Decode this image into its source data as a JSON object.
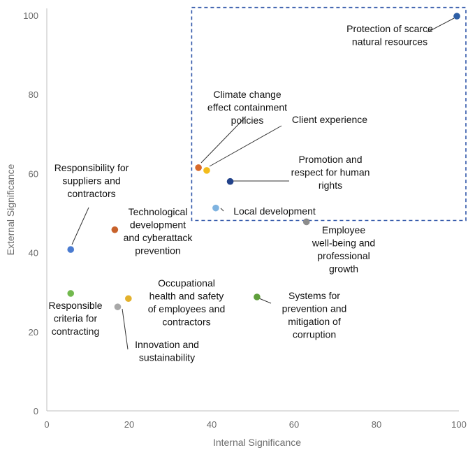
{
  "chart_data": {
    "type": "scatter",
    "title": "",
    "xlabel": "Internal Significance",
    "ylabel": "External Significance",
    "xlim": [
      0,
      100
    ],
    "ylim": [
      0,
      100
    ],
    "x_ticks": [
      "0",
      "20",
      "40",
      "60",
      "80",
      "100"
    ],
    "y_ticks": [
      "0",
      "20",
      "40",
      "60",
      "80",
      "100"
    ],
    "grid": false,
    "highlight_region": {
      "x": [
        36,
        100
      ],
      "y": [
        48.5,
        102
      ]
    },
    "points": [
      {
        "label": [
          "Protection of scarce",
          "natural resources"
        ],
        "x": 99.5,
        "y": 99.8,
        "color": "#2e5fa6"
      },
      {
        "label": [
          "Climate change",
          "effect containment",
          "policies"
        ],
        "x": 36.8,
        "y": 61.5,
        "color": "#d86a2b"
      },
      {
        "label": [
          "Client experience"
        ],
        "x": 38.8,
        "y": 60.8,
        "color": "#f3bc1b"
      },
      {
        "label": [
          "Promotion and",
          "respect for human",
          "rights"
        ],
        "x": 44.5,
        "y": 58,
        "color": "#22428a"
      },
      {
        "label": [
          "Local development"
        ],
        "x": 41,
        "y": 51.3,
        "color": "#7fb3e0"
      },
      {
        "label": [
          "Employee",
          "well-being and",
          "professional",
          "growth"
        ],
        "x": 63,
        "y": 47.8,
        "color": "#8c8c8c"
      },
      {
        "label": [
          "Technological",
          "development",
          "and cyberattack",
          "prevention"
        ],
        "x": 16.5,
        "y": 45.8,
        "color": "#c8622b"
      },
      {
        "label": [
          "Responsibility for",
          "suppliers and",
          "contractors"
        ],
        "x": 5.8,
        "y": 40.8,
        "color": "#4a7bd0"
      },
      {
        "label": [
          "Responsible",
          "criteria for",
          "contracting"
        ],
        "x": 5.8,
        "y": 29.7,
        "color": "#72b94e"
      },
      {
        "label": [
          "Occupational",
          "health and safety",
          "of employees and",
          "contractors"
        ],
        "x": 19.8,
        "y": 28.4,
        "color": "#e3b12c"
      },
      {
        "label": [
          "Innovation and",
          "sustainability"
        ],
        "x": 17.2,
        "y": 26.3,
        "color": "#a8a8a8"
      },
      {
        "label": [
          "Systems for",
          "prevention and",
          "mitigation of",
          "corruption"
        ],
        "x": 51,
        "y": 28.8,
        "color": "#5f9f3c"
      }
    ]
  }
}
